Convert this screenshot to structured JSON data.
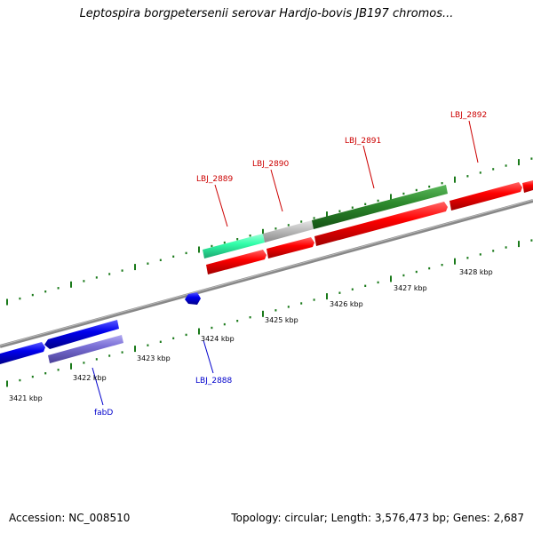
{
  "title": "Leptospira borgpetersenii serovar Hardjo-bovis JB197 chromos...",
  "footer": {
    "accession": "Accession: NC_008510",
    "stats": "Topology: circular; Length: 3,576,473 bp; Genes: 2,687"
  },
  "scale_labels": [
    "3421 kbp",
    "3422 kbp",
    "3423 kbp",
    "3424 kbp",
    "3425 kbp",
    "3426 kbp",
    "3427 kbp",
    "3428 kbp"
  ],
  "gene_labels": {
    "lbj2889": "LBJ_2889",
    "lbj2890": "LBJ_2890",
    "lbj2891": "LBJ_2891",
    "lbj2892": "LBJ_2892",
    "lbj2888": "LBJ_2888",
    "fabd": "fabD"
  },
  "colors": {
    "red_gene": "#ff0000",
    "green_gene": "#2e8b2e",
    "cyan_gene": "#33ffaa",
    "gray_gene": "#c0c0c0",
    "blue_gene": "#0000ee",
    "lavender_gene": "#7a6fd6",
    "label_red": "#cc0000",
    "label_blue": "#0000cc",
    "tick_green": "#1a7a1a"
  }
}
